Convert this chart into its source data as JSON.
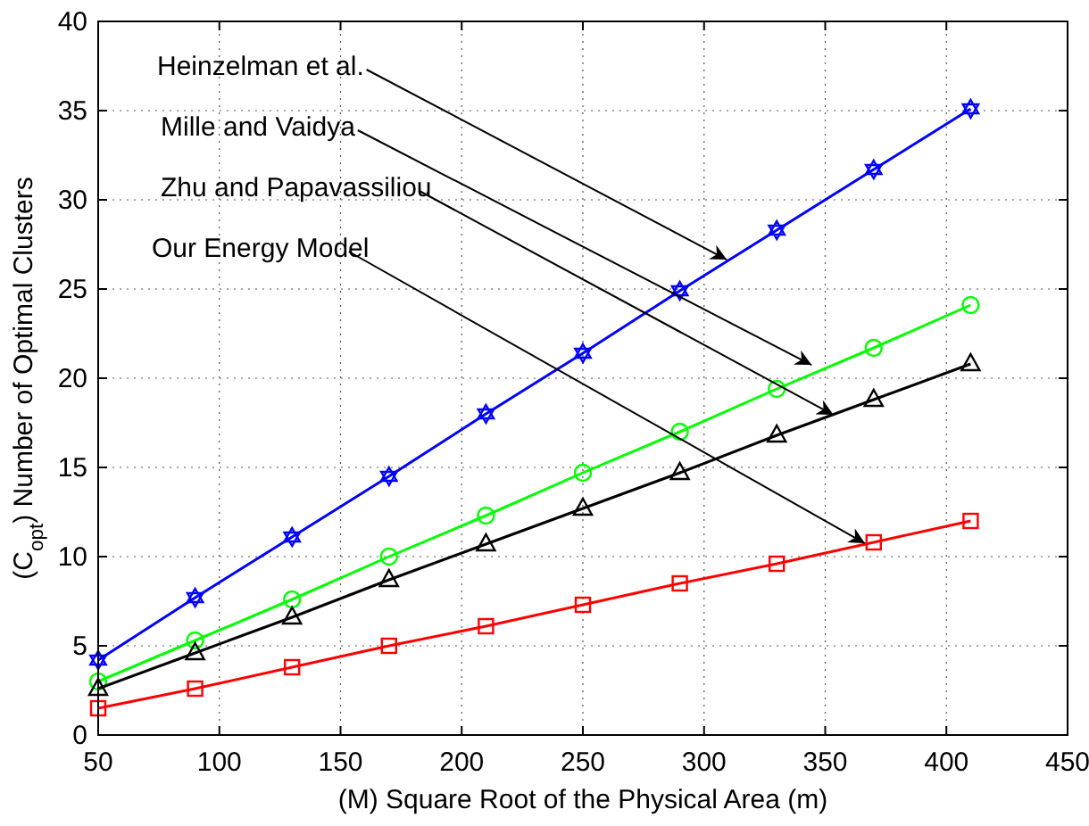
{
  "chart_data": {
    "type": "line",
    "xlabel": "(M) Square Root of the Physical Area (m)",
    "ylabel": "(C$_{opt}$) Number of Optimal Clusters",
    "x": [
      50,
      90,
      130,
      170,
      210,
      250,
      290,
      330,
      370,
      410
    ],
    "xlim": [
      50,
      450
    ],
    "xticks": [
      50,
      100,
      150,
      200,
      250,
      300,
      350,
      400,
      450
    ],
    "ylim": [
      0,
      40
    ],
    "yticks": [
      0,
      5,
      10,
      15,
      20,
      25,
      30,
      35,
      40
    ],
    "grid": true,
    "line_style": "solid",
    "annotations": [
      {
        "text": "Heinzelman et al.",
        "x": 310,
        "y": 26.6
      },
      {
        "text": "Mille and Vaidya",
        "x": 345,
        "y": 20.7
      },
      {
        "text": "Zhu and Papavassiliou",
        "x": 354,
        "y": 17.9
      },
      {
        "text": "Our Energy Model",
        "x": 367,
        "y": 10.7
      }
    ],
    "series": [
      {
        "color": "#0000ff",
        "marker": "star",
        "values": [
          4.2,
          7.7,
          11.1,
          14.5,
          18.0,
          21.4,
          24.9,
          28.3,
          31.7,
          35.1
        ]
      },
      {
        "color": "#00ff00",
        "marker": "circle",
        "values": [
          3.0,
          5.3,
          7.6,
          10.0,
          12.3,
          14.7,
          17.0,
          19.4,
          21.7,
          24.1
        ]
      },
      {
        "color": "#000000",
        "marker": "triangle",
        "values": [
          2.6,
          4.6,
          6.6,
          8.7,
          10.7,
          12.7,
          14.7,
          16.8,
          18.8,
          20.8
        ]
      },
      {
        "color": "#ff0000",
        "marker": "square",
        "values": [
          1.5,
          2.6,
          3.8,
          5.0,
          6.1,
          7.3,
          8.5,
          9.6,
          10.8,
          12.0
        ]
      }
    ]
  }
}
